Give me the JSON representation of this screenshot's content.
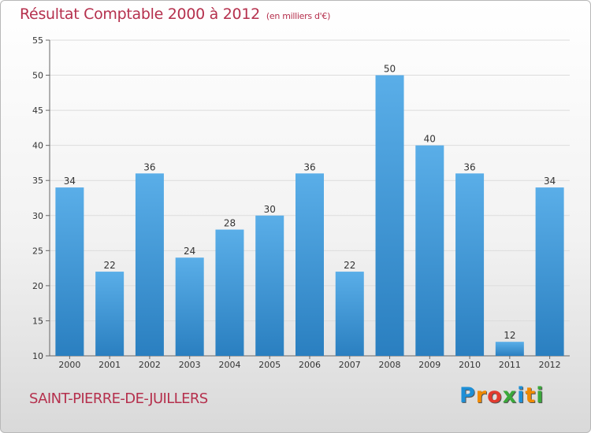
{
  "chart_data": {
    "type": "bar",
    "title": "Résultat Comptable 2000 à 2012",
    "subtitle": "(en milliers d'€)",
    "categories": [
      "2000",
      "2001",
      "2002",
      "2003",
      "2004",
      "2005",
      "2006",
      "2007",
      "2008",
      "2009",
      "2010",
      "2011",
      "2012"
    ],
    "values": [
      34,
      22,
      36,
      24,
      28,
      30,
      36,
      22,
      50,
      40,
      36,
      12,
      34
    ],
    "ylim": [
      10,
      55
    ],
    "yticks": [
      10,
      15,
      20,
      25,
      30,
      35,
      40,
      45,
      50,
      55
    ],
    "grid": true,
    "xlabel": "",
    "ylabel": ""
  },
  "commune": "SAINT-PIERRE-DE-JUILLERS",
  "logo": {
    "text": "Proxiti",
    "letters": [
      "P",
      "r",
      "o",
      "x",
      "i",
      "t",
      "i"
    ],
    "colors": [
      "#1e8fd6",
      "#f08a00",
      "#e23a2e",
      "#3aa83a",
      "#1e8fd6",
      "#f08a00",
      "#3aa83a"
    ]
  },
  "colors": {
    "bar_top": "#5aaee8",
    "bar_bottom": "#2a7fc0",
    "accent": "#b5304d"
  }
}
